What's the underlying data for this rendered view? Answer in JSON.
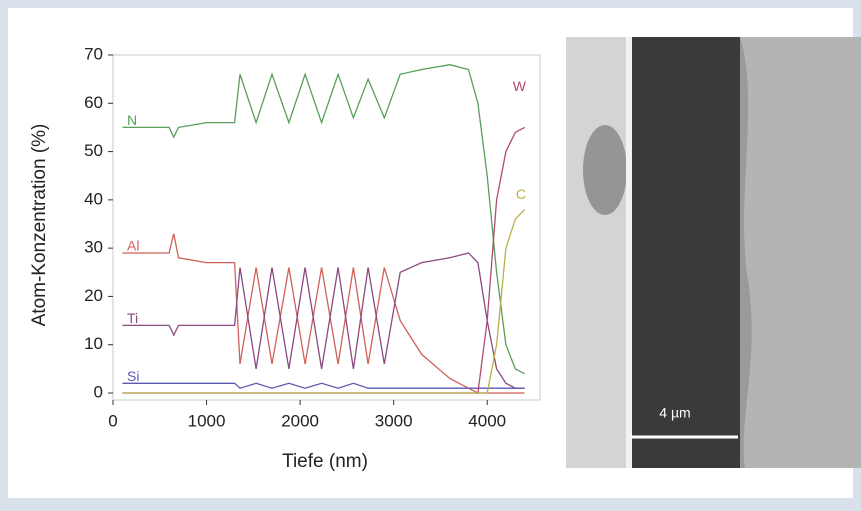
{
  "chart_data": {
    "type": "line",
    "xlabel": "Tiefe (nm)",
    "ylabel": "Atom-Konzentration (%)",
    "xlim": [
      0,
      4500
    ],
    "ylim": [
      0,
      70
    ],
    "xticks": [
      0,
      1000,
      2000,
      3000,
      4000
    ],
    "yticks": [
      0,
      10,
      20,
      30,
      40,
      50,
      60,
      70
    ],
    "x": [
      100,
      300,
      600,
      650,
      700,
      1000,
      1300,
      1358,
      1530,
      1700,
      1880,
      2053,
      2230,
      2406,
      2570,
      2727,
      2900,
      3070,
      3300,
      3600,
      3800,
      3900,
      4000,
      4100,
      4200,
      4300,
      4400
    ],
    "series": [
      {
        "name": "N",
        "color": "#5a9e5a",
        "values": [
          55,
          55,
          55,
          53,
          55,
          56,
          56,
          66,
          56,
          66,
          56,
          66,
          56,
          66,
          57,
          65,
          57,
          66,
          67,
          68,
          67,
          60,
          45,
          25,
          10,
          5,
          4
        ]
      },
      {
        "name": "Al",
        "color": "#d0605a",
        "values": [
          29,
          29,
          29,
          33,
          28,
          27,
          27,
          6,
          26,
          6,
          26,
          6,
          26,
          6,
          26,
          6,
          26,
          15,
          8,
          3,
          1,
          0,
          0,
          0,
          0,
          0,
          0
        ]
      },
      {
        "name": "Ti",
        "color": "#8a4a80",
        "values": [
          14,
          14,
          14,
          12,
          14,
          14,
          14,
          26,
          5,
          26,
          5,
          26,
          5,
          26,
          5,
          26,
          6,
          25,
          27,
          28,
          29,
          27,
          15,
          5,
          2,
          1,
          1
        ]
      },
      {
        "name": "Si",
        "color": "#5a5ab0",
        "values": [
          2,
          2,
          2,
          2,
          2,
          2,
          2,
          1,
          2,
          1,
          2,
          1,
          2,
          1,
          2,
          1,
          1,
          1,
          1,
          1,
          1,
          1,
          1,
          1,
          1,
          1,
          1
        ]
      },
      {
        "name": "W",
        "color": "#b04a70",
        "values": [
          0,
          0,
          0,
          0,
          0,
          0,
          0,
          0,
          0,
          0,
          0,
          0,
          0,
          0,
          0,
          0,
          0,
          0,
          0,
          0,
          0,
          0,
          15,
          40,
          50,
          54,
          55
        ]
      },
      {
        "name": "C",
        "color": "#b8b048",
        "values": [
          0,
          0,
          0,
          0,
          0,
          0,
          0,
          0,
          0,
          0,
          0,
          0,
          0,
          0,
          0,
          0,
          0,
          0,
          0,
          0,
          0,
          0,
          0,
          10,
          30,
          36,
          38
        ]
      }
    ]
  },
  "image": {
    "scale_label": "4 µm"
  }
}
